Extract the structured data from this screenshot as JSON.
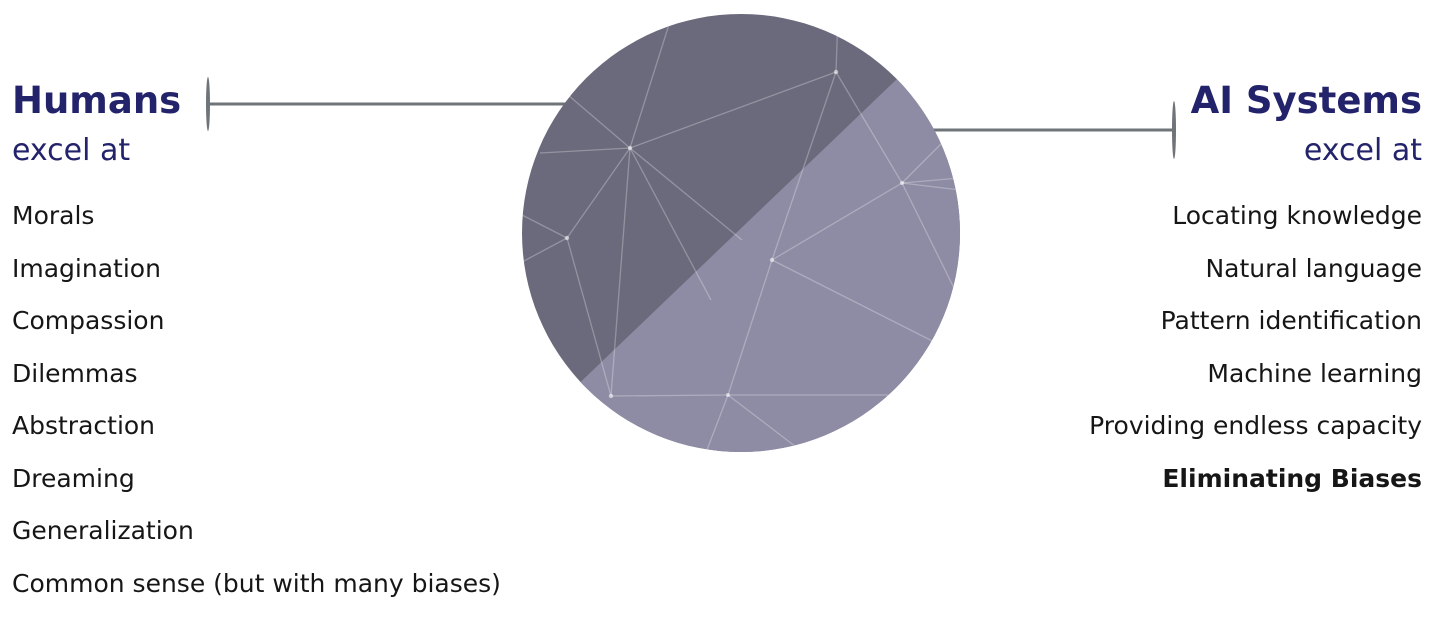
{
  "humans": {
    "title": "Humans",
    "subtitle": "excel at",
    "items": [
      "Morals",
      "Imagination",
      "Compassion",
      "Dilemmas",
      "Abstraction",
      "Dreaming",
      "Generalization",
      "Common sense (but with many biases)"
    ]
  },
  "ai": {
    "title": "AI Systems",
    "subtitle": "excel at",
    "items": [
      "Locating knowledge",
      "Natural language",
      "Pattern identification",
      "Machine learning",
      "Providing endless capacity",
      "Eliminating Biases"
    ]
  },
  "colors": {
    "heading": "#23236b",
    "circle_dark": "#6a6a7c",
    "circle_light": "#8e8ca4",
    "connector": "#6f7479"
  }
}
